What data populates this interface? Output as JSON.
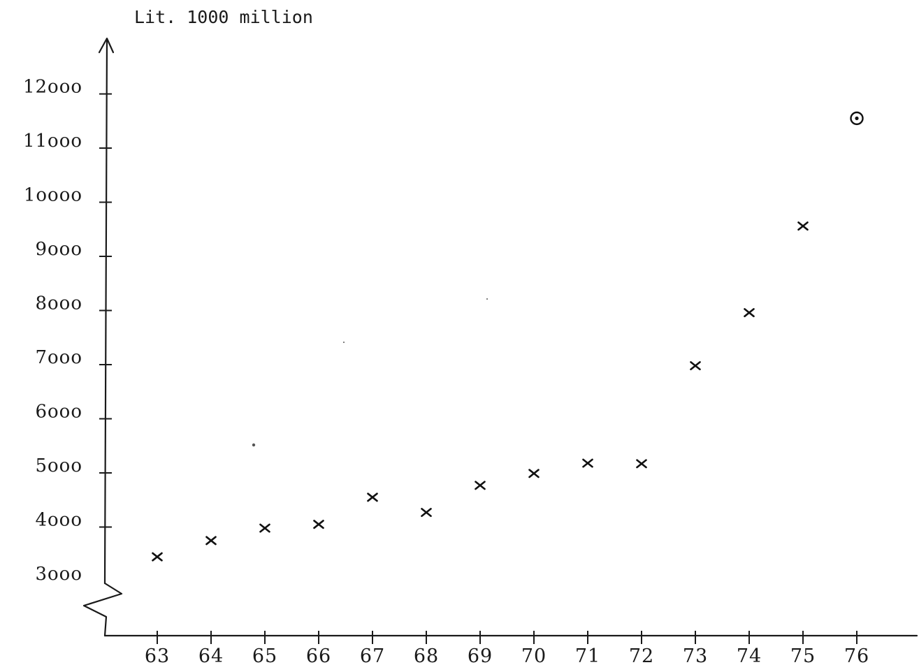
{
  "chart_data": {
    "type": "scatter",
    "unit_label": "Lit. 1000 million",
    "title": "",
    "xlabel": "",
    "ylabel": "",
    "x_ticks": [
      "63",
      "64",
      "65",
      "66",
      "67",
      "68",
      "69",
      "70",
      "71",
      "72",
      "73",
      "74",
      "75",
      "76"
    ],
    "y_ticks": [
      "3ooo",
      "4ooo",
      "5ooo",
      "6ooo",
      "7ooo",
      "8ooo",
      "9ooo",
      "1oooo",
      "11ooo",
      "12ooo"
    ],
    "y_tick_values": [
      3000,
      4000,
      5000,
      6000,
      7000,
      8000,
      9000,
      10000,
      11000,
      12000
    ],
    "ylim": [
      3000,
      12000
    ],
    "xlim": [
      63,
      76
    ],
    "y_axis_break": true,
    "grid": false,
    "points": [
      {
        "x": 63,
        "y": 3450,
        "marker": "cross"
      },
      {
        "x": 64,
        "y": 3750,
        "marker": "cross"
      },
      {
        "x": 65,
        "y": 3980,
        "marker": "cross"
      },
      {
        "x": 66,
        "y": 4050,
        "marker": "cross"
      },
      {
        "x": 67,
        "y": 4550,
        "marker": "cross"
      },
      {
        "x": 68,
        "y": 4270,
        "marker": "cross"
      },
      {
        "x": 69,
        "y": 4770,
        "marker": "cross"
      },
      {
        "x": 70,
        "y": 4990,
        "marker": "cross"
      },
      {
        "x": 71,
        "y": 5180,
        "marker": "cross"
      },
      {
        "x": 72,
        "y": 5170,
        "marker": "cross"
      },
      {
        "x": 73,
        "y": 6980,
        "marker": "cross"
      },
      {
        "x": 74,
        "y": 7960,
        "marker": "cross"
      },
      {
        "x": 75,
        "y": 9560,
        "marker": "cross"
      },
      {
        "x": 76,
        "y": 11550,
        "marker": "circled-dot"
      }
    ]
  }
}
